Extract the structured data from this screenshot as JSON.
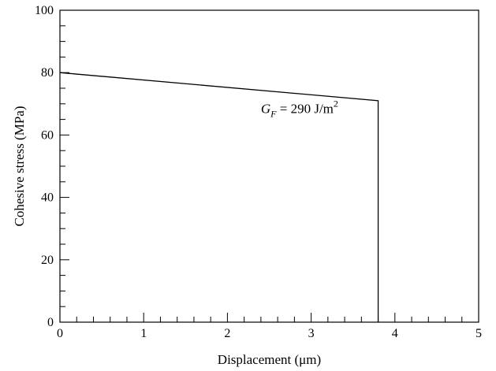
{
  "chart_data": {
    "type": "line",
    "xlabel": "Displacement (μm)",
    "ylabel": "Cohesive stress (MPa)",
    "xlim": [
      0,
      5
    ],
    "ylim": [
      0,
      100
    ],
    "xticks": [
      "0",
      "1",
      "2",
      "3",
      "4",
      "5"
    ],
    "yticks": [
      "0",
      "20",
      "40",
      "60",
      "80",
      "100"
    ],
    "x_minor_step": 0.2,
    "y_minor_step": 5,
    "series": [
      {
        "x": [
          0,
          3.8,
          3.8
        ],
        "y": [
          80,
          71,
          0
        ]
      }
    ],
    "annotation": {
      "var": "G",
      "sub": "F",
      "rest": " = 290 J/m",
      "sup": "2",
      "x": 2.4,
      "y": 67
    },
    "grid": false,
    "legend": "none"
  }
}
